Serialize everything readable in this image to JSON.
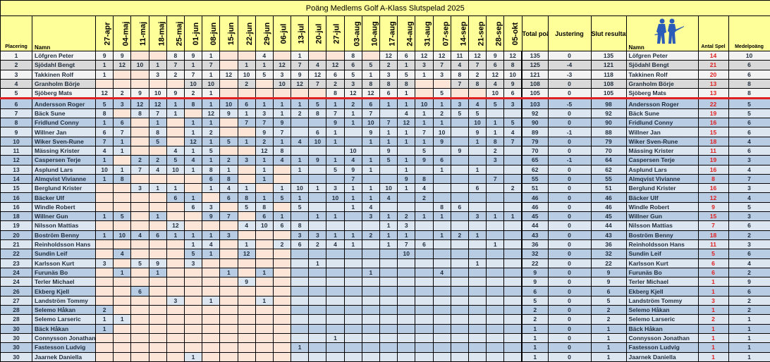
{
  "title": "Poäng Medlems Golf  A-Klass Slutspelad 2025",
  "headers": {
    "placering": "Placering",
    "namn": "Namn",
    "total": "Total poäng",
    "justering": "Justering",
    "slut": "Slut resultat",
    "namn2": "Namn",
    "antal": "Antal Spel",
    "medel": "Medelpoäng"
  },
  "logo_icon": "golfers-icon",
  "colors": {
    "header": "#ffff99",
    "top_row": "#f2f2f2",
    "top_row_alt": "#d9d9d9",
    "row": "#dce6f1",
    "row_alt": "#b8cce4",
    "empty": "#fce4d6",
    "cut_line": "#e02020",
    "antal_text": "#e02020"
  },
  "dates": [
    "27-apr",
    "04-maj",
    "11-maj",
    "18-maj",
    "25-maj",
    "01-jun",
    "08-jun",
    "15-jun",
    "22-jun",
    "29-jun",
    "06-jul",
    "13-jul",
    "20-jul",
    "27-jul",
    "03-aug",
    "10-aug",
    "17-aug",
    "24-aug",
    "31-aug",
    "07-sep",
    "14-sep",
    "21-sep",
    "28-sep",
    "05-okt"
  ],
  "rows": [
    {
      "place": "1",
      "name": "Löfgren Peter",
      "scores": [
        9,
        9,
        null,
        null,
        8,
        9,
        1,
        null,
        null,
        4,
        null,
        1,
        null,
        null,
        8,
        null,
        12,
        6,
        12,
        12,
        11,
        12,
        9,
        12
      ],
      "total": "135",
      "just": "0",
      "slut": "135",
      "antal": "14",
      "medel": "10"
    },
    {
      "place": "2",
      "name": "Sjödahl Bengt",
      "scores": [
        1,
        12,
        10,
        1,
        7,
        1,
        7,
        null,
        1,
        1,
        12,
        7,
        4,
        12,
        6,
        5,
        2,
        1,
        3,
        7,
        4,
        7,
        6,
        8
      ],
      "total": "125",
      "just": "-4",
      "slut": "121",
      "antal": "21",
      "medel": "6"
    },
    {
      "place": "3",
      "name": "Takkinen Rolf",
      "scores": [
        1,
        null,
        null,
        3,
        2,
        7,
        1,
        12,
        10,
        5,
        3,
        9,
        12,
        6,
        5,
        1,
        3,
        5,
        1,
        3,
        8,
        2,
        12,
        10
      ],
      "total": "121",
      "just": "-3",
      "slut": "118",
      "antal": "20",
      "medel": "6"
    },
    {
      "place": "4",
      "name": "Granholm Börje",
      "scores": [
        null,
        null,
        null,
        null,
        null,
        10,
        10,
        null,
        2,
        null,
        10,
        12,
        7,
        2,
        3,
        8,
        8,
        8,
        null,
        null,
        7,
        8,
        4,
        9
      ],
      "total": "108",
      "just": "0",
      "slut": "108",
      "antal": "13",
      "medel": "8"
    },
    {
      "place": "5",
      "name": "Sjöberg Mats",
      "scores": [
        12,
        2,
        9,
        10,
        9,
        2,
        1,
        null,
        null,
        null,
        null,
        null,
        null,
        8,
        12,
        12,
        6,
        1,
        null,
        5,
        null,
        null,
        10,
        6
      ],
      "total": "105",
      "just": "0",
      "slut": "105",
      "antal": "13",
      "medel": "8"
    },
    {
      "place": "6",
      "name": "Andersson Roger",
      "scores": [
        5,
        3,
        12,
        12,
        1,
        8,
        1,
        10,
        6,
        1,
        1,
        1,
        5,
        1,
        2,
        6,
        1,
        1,
        10,
        1,
        3,
        4,
        5,
        3
      ],
      "total": "103",
      "just": "-5",
      "slut": "98",
      "antal": "22",
      "medel": "5"
    },
    {
      "place": "7",
      "name": "Bäck Sune",
      "scores": [
        8,
        null,
        8,
        7,
        1,
        null,
        12,
        9,
        1,
        3,
        1,
        2,
        8,
        7,
        1,
        7,
        null,
        4,
        1,
        2,
        5,
        5,
        null,
        null
      ],
      "total": "92",
      "just": "0",
      "slut": "92",
      "antal": "19",
      "medel": "5"
    },
    {
      "place": "8",
      "name": "Fridlund Conny",
      "scores": [
        1,
        6,
        null,
        1,
        null,
        1,
        1,
        null,
        7,
        7,
        9,
        null,
        null,
        9,
        1,
        10,
        7,
        12,
        1,
        1,
        null,
        10,
        1,
        5
      ],
      "total": "90",
      "just": "0",
      "slut": "90",
      "antal": "16",
      "medel": "6"
    },
    {
      "place": "9",
      "name": "Willner Jan",
      "scores": [
        6,
        7,
        null,
        8,
        null,
        1,
        2,
        null,
        null,
        9,
        7,
        null,
        6,
        1,
        null,
        9,
        1,
        1,
        7,
        10,
        null,
        9,
        1,
        4
      ],
      "total": "89",
      "just": "-1",
      "slut": "88",
      "antal": "15",
      "medel": "6"
    },
    {
      "place": "10",
      "name": "Wiker Sven-Rune",
      "scores": [
        7,
        1,
        null,
        5,
        null,
        12,
        1,
        5,
        1,
        2,
        1,
        4,
        10,
        1,
        null,
        1,
        1,
        1,
        1,
        9,
        null,
        1,
        8,
        7
      ],
      "total": "79",
      "just": "0",
      "slut": "79",
      "antal": "18",
      "medel": "4"
    },
    {
      "place": "11",
      "name": "Mässing Krister",
      "scores": [
        4,
        1,
        null,
        null,
        4,
        1,
        5,
        null,
        null,
        12,
        8,
        null,
        null,
        null,
        10,
        null,
        9,
        null,
        5,
        null,
        9,
        null,
        2,
        null
      ],
      "total": "70",
      "just": "0",
      "slut": "70",
      "antal": "11",
      "medel": "6"
    },
    {
      "place": "12",
      "name": "Caspersen Terje",
      "scores": [
        1,
        null,
        2,
        2,
        5,
        4,
        1,
        2,
        3,
        1,
        4,
        1,
        9,
        1,
        4,
        1,
        5,
        1,
        9,
        6,
        null,
        null,
        3,
        null
      ],
      "total": "65",
      "just": "-1",
      "slut": "64",
      "antal": "19",
      "medel": "3"
    },
    {
      "place": "13",
      "name": "Asplund Lars",
      "scores": [
        10,
        1,
        7,
        4,
        10,
        1,
        8,
        1,
        null,
        1,
        null,
        1,
        null,
        5,
        9,
        1,
        null,
        1,
        null,
        1,
        null,
        1,
        null,
        null
      ],
      "total": "62",
      "just": "0",
      "slut": "62",
      "antal": "16",
      "medel": "4"
    },
    {
      "place": "14",
      "name": "Almqvist Vivianne",
      "scores": [
        1,
        8,
        null,
        null,
        null,
        null,
        6,
        8,
        null,
        1,
        null,
        null,
        null,
        null,
        7,
        null,
        null,
        9,
        8,
        null,
        null,
        null,
        7,
        null
      ],
      "total": "55",
      "just": "0",
      "slut": "55",
      "antal": "8",
      "medel": "7"
    },
    {
      "place": "15",
      "name": "Berglund Krister",
      "scores": [
        null,
        null,
        3,
        1,
        1,
        null,
        1,
        4,
        1,
        null,
        1,
        10,
        1,
        3,
        1,
        1,
        10,
        1,
        4,
        null,
        null,
        6,
        null,
        2
      ],
      "total": "51",
      "just": "0",
      "slut": "51",
      "antal": "16",
      "medel": "3"
    },
    {
      "place": "16",
      "name": "Bäcker Ulf",
      "scores": [
        null,
        null,
        null,
        null,
        6,
        1,
        null,
        6,
        8,
        1,
        5,
        1,
        null,
        10,
        1,
        1,
        4,
        null,
        2,
        null,
        null,
        null,
        null,
        null
      ],
      "total": "46",
      "just": "0",
      "slut": "46",
      "antal": "12",
      "medel": "4"
    },
    {
      "place": "16",
      "name": "Windle Robert",
      "scores": [
        null,
        null,
        null,
        null,
        null,
        6,
        3,
        null,
        5,
        8,
        null,
        5,
        null,
        null,
        1,
        4,
        null,
        null,
        null,
        8,
        6,
        null,
        null,
        null
      ],
      "total": "46",
      "just": "0",
      "slut": "46",
      "antal": "9",
      "medel": "5"
    },
    {
      "place": "18",
      "name": "Willner Gun",
      "scores": [
        1,
        5,
        null,
        1,
        null,
        null,
        9,
        7,
        null,
        6,
        1,
        null,
        1,
        1,
        null,
        3,
        1,
        2,
        1,
        1,
        null,
        3,
        1,
        1
      ],
      "total": "45",
      "just": "0",
      "slut": "45",
      "antal": "15",
      "medel": "3"
    },
    {
      "place": "19",
      "name": "Nilsson Mattias",
      "scores": [
        null,
        null,
        null,
        null,
        12,
        null,
        null,
        null,
        4,
        10,
        6,
        8,
        null,
        null,
        null,
        null,
        1,
        3,
        null,
        null,
        null,
        null,
        null,
        null
      ],
      "total": "44",
      "just": "0",
      "slut": "44",
      "antal": "7",
      "medel": "6"
    },
    {
      "place": "20",
      "name": "Boström Benny",
      "scores": [
        1,
        10,
        4,
        6,
        1,
        1,
        1,
        3,
        null,
        null,
        null,
        3,
        3,
        1,
        1,
        2,
        1,
        1,
        null,
        1,
        2,
        1,
        null,
        null
      ],
      "total": "43",
      "just": "0",
      "slut": "43",
      "antal": "18",
      "medel": "2"
    },
    {
      "place": "21",
      "name": "Reinholdsson Hans",
      "scores": [
        null,
        null,
        null,
        null,
        null,
        1,
        4,
        null,
        1,
        null,
        2,
        6,
        2,
        4,
        1,
        null,
        1,
        7,
        6,
        null,
        null,
        null,
        1,
        null
      ],
      "total": "36",
      "just": "0",
      "slut": "36",
      "antal": "11",
      "medel": "3"
    },
    {
      "place": "22",
      "name": "Sundin Leif",
      "scores": [
        null,
        4,
        null,
        null,
        null,
        5,
        1,
        null,
        12,
        null,
        null,
        null,
        null,
        null,
        null,
        null,
        null,
        10,
        null,
        null,
        null,
        null,
        null,
        null
      ],
      "total": "32",
      "just": "0",
      "slut": "32",
      "antal": "5",
      "medel": "6"
    },
    {
      "place": "23",
      "name": "Karlsson Kurt",
      "scores": [
        3,
        null,
        5,
        9,
        null,
        3,
        null,
        null,
        null,
        null,
        null,
        null,
        1,
        null,
        null,
        null,
        null,
        null,
        null,
        null,
        null,
        1,
        null,
        null
      ],
      "total": "22",
      "just": "0",
      "slut": "22",
      "antal": "6",
      "medel": "4"
    },
    {
      "place": "24",
      "name": "Furunäs Bo",
      "scores": [
        null,
        1,
        null,
        1,
        null,
        null,
        null,
        1,
        null,
        1,
        null,
        null,
        null,
        null,
        null,
        1,
        null,
        null,
        null,
        4,
        null,
        null,
        null,
        null
      ],
      "total": "9",
      "just": "0",
      "slut": "9",
      "antal": "6",
      "medel": "2"
    },
    {
      "place": "24",
      "name": "Terler Michael",
      "scores": [
        null,
        null,
        null,
        null,
        null,
        null,
        null,
        null,
        9,
        null,
        null,
        null,
        null,
        null,
        null,
        null,
        null,
        null,
        null,
        null,
        null,
        null,
        null,
        null
      ],
      "total": "9",
      "just": "0",
      "slut": "9",
      "antal": "1",
      "medel": "9"
    },
    {
      "place": "26",
      "name": "Ekberg Kjell",
      "scores": [
        null,
        null,
        6,
        null,
        null,
        null,
        null,
        null,
        null,
        null,
        null,
        null,
        null,
        null,
        null,
        null,
        null,
        null,
        null,
        null,
        null,
        null,
        null,
        null
      ],
      "total": "6",
      "just": "0",
      "slut": "6",
      "antal": "1",
      "medel": "6"
    },
    {
      "place": "27",
      "name": "Landström Tommy",
      "scores": [
        null,
        null,
        null,
        null,
        3,
        null,
        1,
        null,
        null,
        1,
        null,
        null,
        null,
        null,
        null,
        null,
        null,
        null,
        null,
        null,
        null,
        null,
        null,
        null
      ],
      "total": "5",
      "just": "0",
      "slut": "5",
      "antal": "3",
      "medel": "2"
    },
    {
      "place": "28",
      "name": "Selemo Håkan",
      "scores": [
        2,
        null,
        null,
        null,
        null,
        null,
        null,
        null,
        null,
        null,
        null,
        null,
        null,
        null,
        null,
        null,
        null,
        null,
        null,
        null,
        null,
        null,
        null,
        null
      ],
      "total": "2",
      "just": "0",
      "slut": "2",
      "antal": "1",
      "medel": "2"
    },
    {
      "place": "28",
      "name": "Selemo Larseric",
      "scores": [
        1,
        1,
        null,
        null,
        null,
        null,
        null,
        null,
        null,
        null,
        null,
        null,
        null,
        null,
        null,
        null,
        null,
        null,
        null,
        null,
        null,
        null,
        null,
        null
      ],
      "total": "2",
      "just": "0",
      "slut": "2",
      "antal": "2",
      "medel": "1"
    },
    {
      "place": "30",
      "name": "Bäck Håkan",
      "scores": [
        1,
        null,
        null,
        null,
        null,
        null,
        null,
        null,
        null,
        null,
        null,
        null,
        null,
        null,
        null,
        null,
        null,
        null,
        null,
        null,
        null,
        null,
        null,
        null
      ],
      "total": "1",
      "just": "0",
      "slut": "1",
      "antal": "1",
      "medel": "1"
    },
    {
      "place": "30",
      "name": "Connysson Jonathan",
      "scores": [
        null,
        null,
        null,
        null,
        null,
        null,
        null,
        null,
        null,
        null,
        null,
        null,
        null,
        1,
        null,
        null,
        null,
        null,
        null,
        null,
        null,
        null,
        null,
        null
      ],
      "total": "1",
      "just": "0",
      "slut": "1",
      "antal": "1",
      "medel": "1"
    },
    {
      "place": "30",
      "name": "Fastesson Ludvig",
      "scores": [
        null,
        null,
        null,
        null,
        null,
        null,
        null,
        null,
        null,
        null,
        null,
        1,
        null,
        null,
        null,
        null,
        null,
        null,
        null,
        null,
        null,
        null,
        null,
        null
      ],
      "total": "1",
      "just": "0",
      "slut": "1",
      "antal": "1",
      "medel": "1"
    },
    {
      "place": "30",
      "name": "Jaarnek Daniella",
      "scores": [
        null,
        null,
        null,
        null,
        null,
        1,
        null,
        null,
        null,
        null,
        null,
        null,
        null,
        null,
        null,
        null,
        null,
        null,
        null,
        null,
        null,
        null,
        null,
        null
      ],
      "total": "1",
      "just": "0",
      "slut": "1",
      "antal": "1",
      "medel": "1"
    }
  ]
}
